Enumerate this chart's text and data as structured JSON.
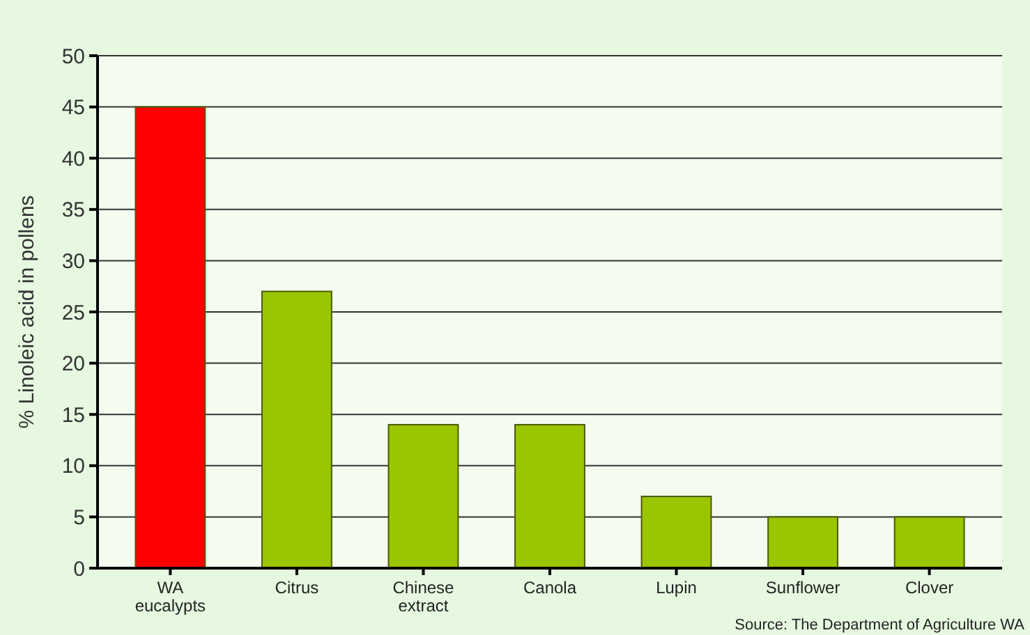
{
  "chart_data": {
    "type": "bar",
    "ylabel": "% Linoleic acid in pollens",
    "categories": [
      "WA eucalypts",
      "Citrus",
      "Chinese extract",
      "Canola",
      "Lupin",
      "Sunflower",
      "Clover"
    ],
    "values": [
      45,
      27,
      14,
      14,
      7,
      5,
      5
    ],
    "colors": [
      "#ff0000",
      "#99c600",
      "#99c600",
      "#99c600",
      "#99c600",
      "#99c600",
      "#99c600"
    ],
    "ylim": [
      0,
      50
    ],
    "yticks": [
      0,
      5,
      10,
      15,
      20,
      25,
      30,
      35,
      40,
      45,
      50
    ],
    "grid": "y",
    "annotations": [
      "Source: The Department of Agriculture WA"
    ]
  }
}
